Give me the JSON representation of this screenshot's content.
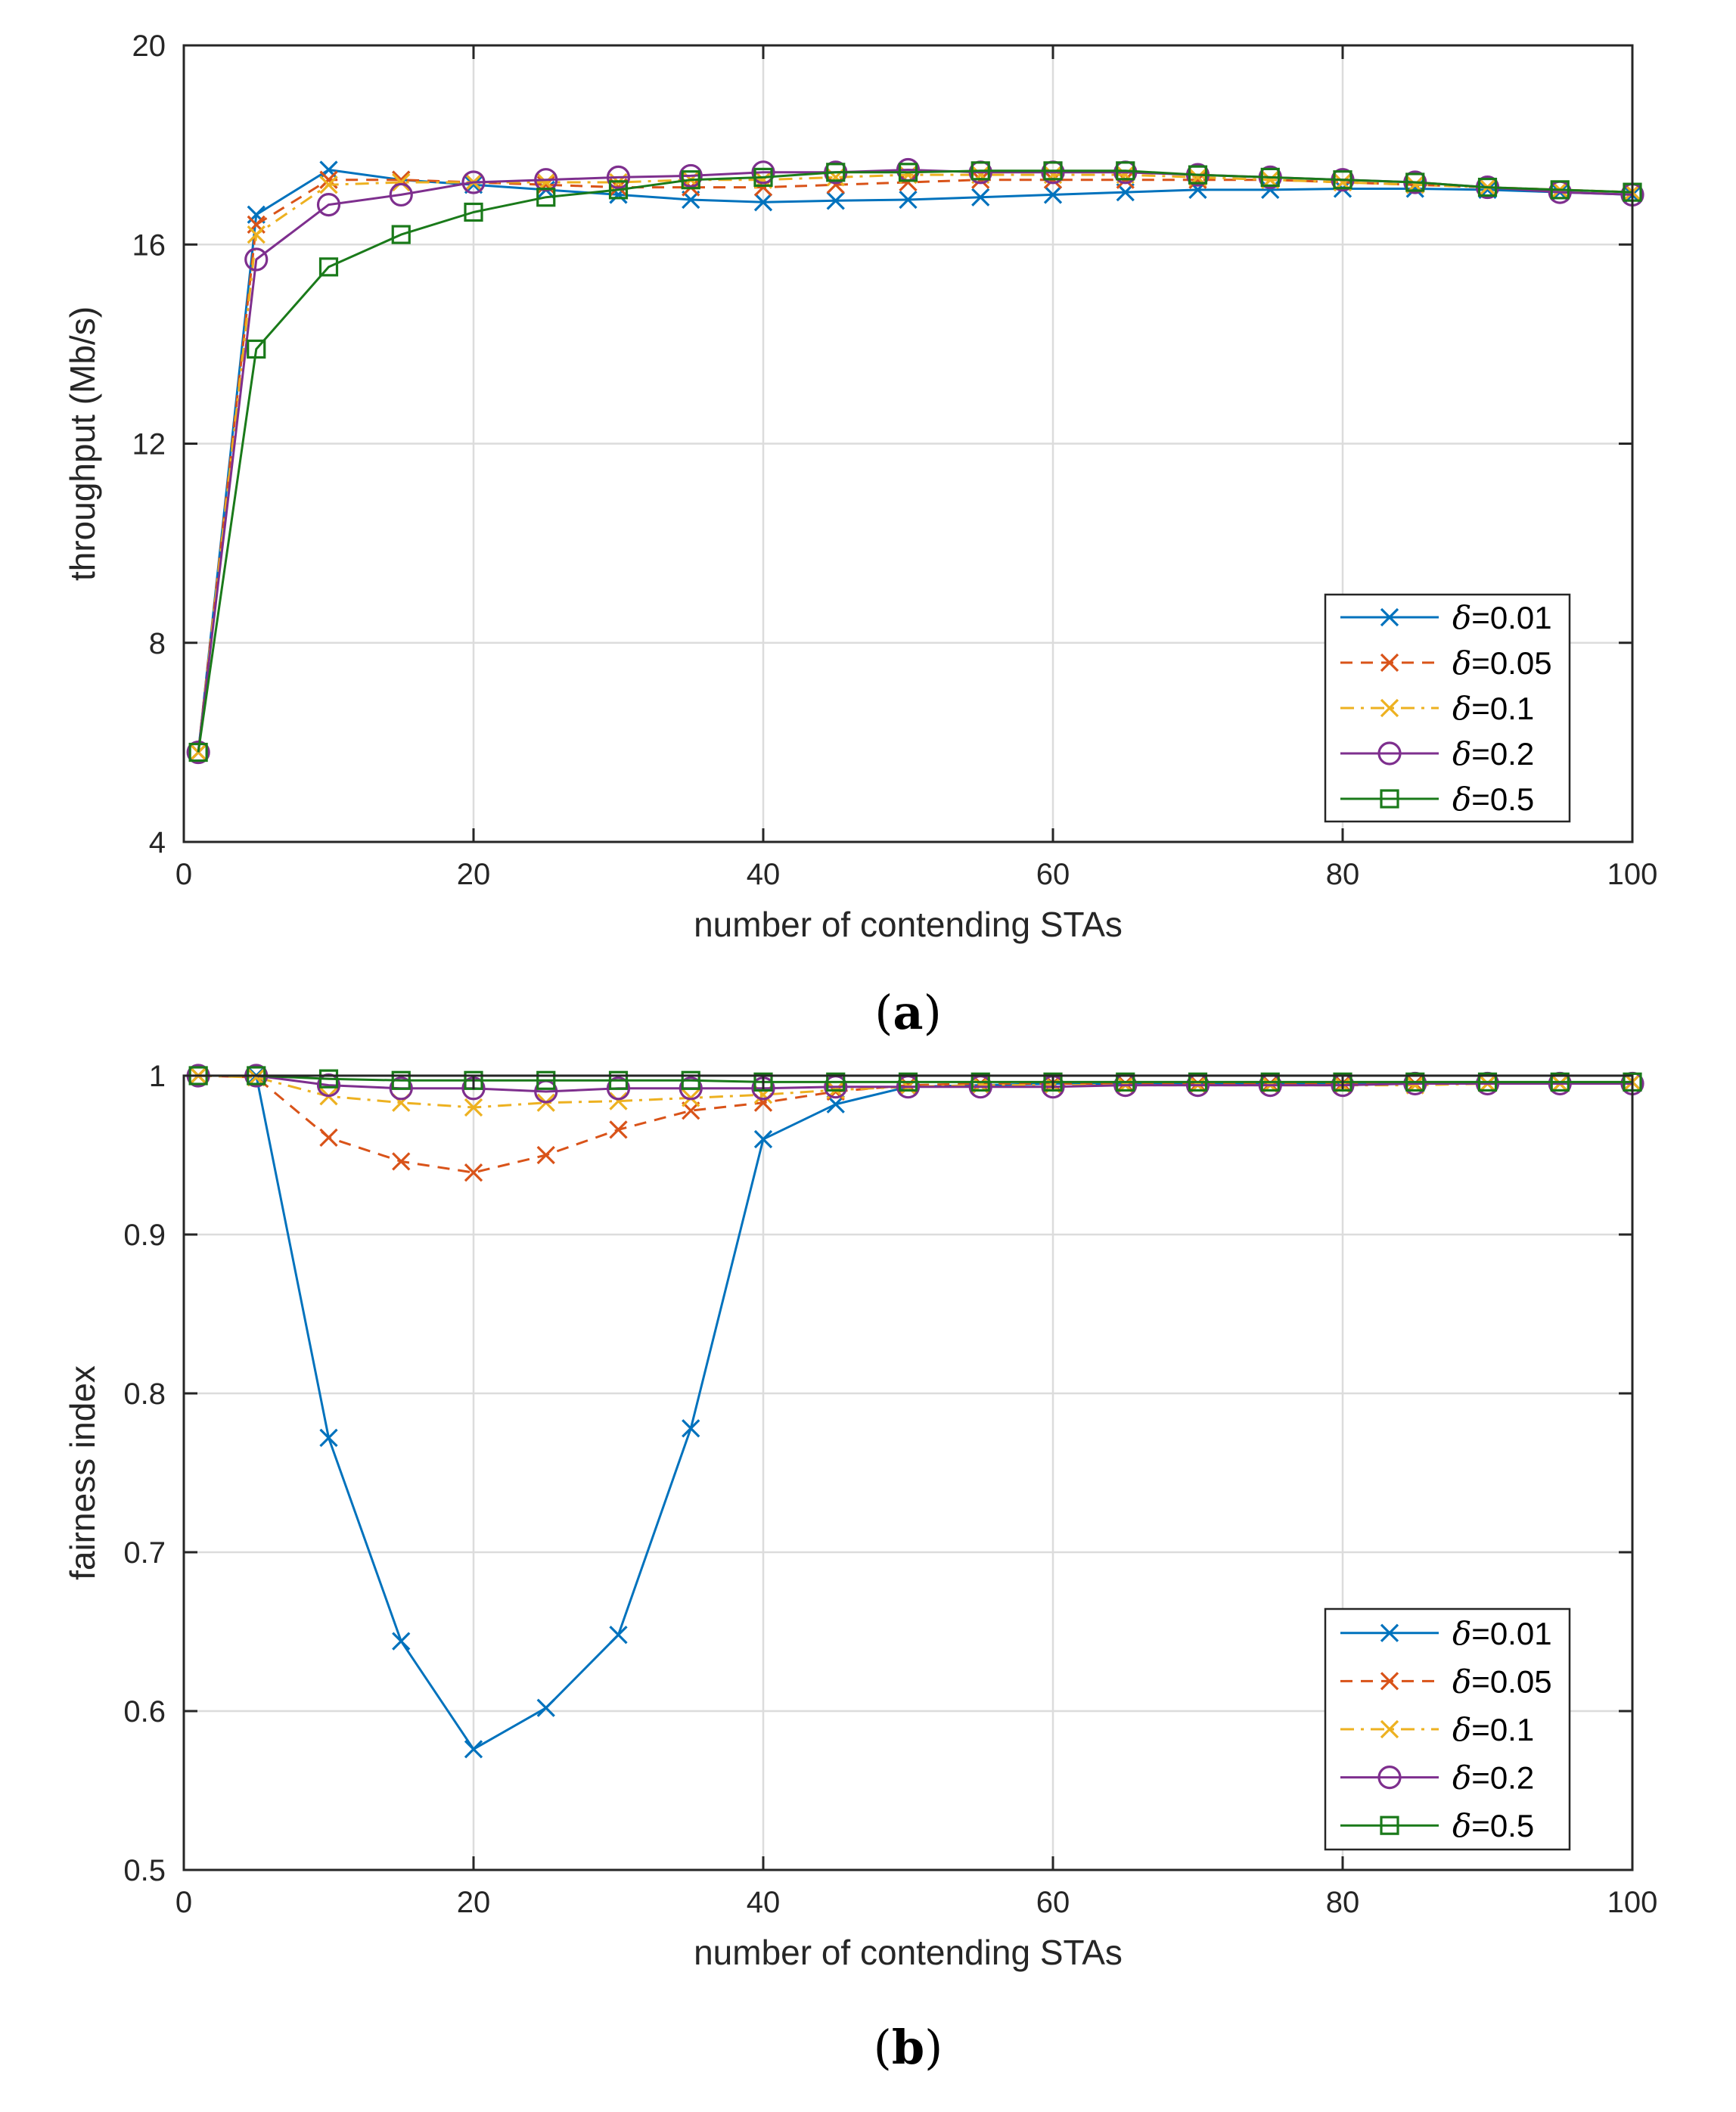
{
  "chart_data": [
    {
      "id": "a",
      "type": "line",
      "caption_letter": "a",
      "xlabel": "number of contending STAs",
      "ylabel": "throughput (Mb/s)",
      "xlim": [
        0,
        100
      ],
      "ylim": [
        4,
        20
      ],
      "xticks": [
        0,
        20,
        40,
        60,
        80,
        100
      ],
      "yticks": [
        4,
        8,
        12,
        16,
        20
      ],
      "grid": true,
      "legend_position": "bottom-right",
      "x": [
        1,
        5,
        10,
        15,
        20,
        25,
        30,
        35,
        40,
        45,
        50,
        55,
        60,
        65,
        70,
        75,
        80,
        85,
        90,
        95,
        100
      ],
      "series": [
        {
          "name": "δ=0.01",
          "delta": "0.01",
          "color": "#0072BD",
          "marker": "x",
          "dash": "solid",
          "values": [
            5.8,
            16.6,
            17.5,
            17.3,
            17.2,
            17.1,
            17.0,
            16.9,
            16.85,
            16.88,
            16.9,
            16.95,
            17.0,
            17.05,
            17.1,
            17.1,
            17.12,
            17.12,
            17.1,
            17.05,
            17.0
          ]
        },
        {
          "name": "δ=0.05",
          "delta": "0.05",
          "color": "#D95319",
          "marker": "x",
          "dash": "dashed",
          "values": [
            5.8,
            16.4,
            17.3,
            17.3,
            17.25,
            17.2,
            17.15,
            17.15,
            17.15,
            17.2,
            17.25,
            17.3,
            17.3,
            17.3,
            17.3,
            17.3,
            17.25,
            17.2,
            17.15,
            17.1,
            17.05
          ]
        },
        {
          "name": "δ=0.1",
          "delta": "0.1",
          "color": "#EDB120",
          "marker": "x",
          "dash": "dashdot",
          "values": [
            5.8,
            16.2,
            17.2,
            17.25,
            17.25,
            17.25,
            17.25,
            17.3,
            17.3,
            17.35,
            17.4,
            17.4,
            17.4,
            17.4,
            17.35,
            17.3,
            17.25,
            17.2,
            17.15,
            17.1,
            17.05
          ]
        },
        {
          "name": "δ=0.2",
          "delta": "0.2",
          "color": "#7E2F8E",
          "marker": "o",
          "dash": "solid",
          "values": [
            5.8,
            15.7,
            16.8,
            17.0,
            17.25,
            17.3,
            17.35,
            17.38,
            17.45,
            17.45,
            17.5,
            17.45,
            17.45,
            17.45,
            17.4,
            17.35,
            17.3,
            17.25,
            17.15,
            17.05,
            17.0
          ]
        },
        {
          "name": "δ=0.5",
          "delta": "0.5",
          "color": "#1A7A1A",
          "marker": "s",
          "dash": "solid",
          "values": [
            5.8,
            13.9,
            15.55,
            16.2,
            16.65,
            16.95,
            17.1,
            17.3,
            17.35,
            17.45,
            17.45,
            17.48,
            17.48,
            17.48,
            17.4,
            17.35,
            17.3,
            17.25,
            17.15,
            17.1,
            17.05
          ]
        }
      ]
    },
    {
      "id": "b",
      "type": "line",
      "caption_letter": "b",
      "xlabel": "number of contending STAs",
      "ylabel": "fairness index",
      "xlim": [
        0,
        100
      ],
      "ylim": [
        0.5,
        1
      ],
      "xticks": [
        0,
        20,
        40,
        60,
        80,
        100
      ],
      "yticks": [
        0.5,
        0.6,
        0.7,
        0.8,
        0.9,
        1
      ],
      "grid": true,
      "legend_position": "bottom-right",
      "x": [
        1,
        5,
        10,
        15,
        20,
        25,
        30,
        35,
        40,
        45,
        50,
        55,
        60,
        65,
        70,
        75,
        80,
        85,
        90,
        95,
        100
      ],
      "series": [
        {
          "name": "δ=0.01",
          "delta": "0.01",
          "color": "#0072BD",
          "marker": "x",
          "dash": "solid",
          "values": [
            1.0,
            1.0,
            0.772,
            0.644,
            0.576,
            0.602,
            0.648,
            0.778,
            0.96,
            0.982,
            0.993,
            0.994,
            0.995,
            0.995,
            0.995,
            0.995,
            0.995,
            0.995,
            0.995,
            0.995,
            0.996
          ]
        },
        {
          "name": "δ=0.05",
          "delta": "0.05",
          "color": "#D95319",
          "marker": "x",
          "dash": "dashed",
          "values": [
            1.0,
            0.999,
            0.961,
            0.946,
            0.939,
            0.95,
            0.966,
            0.978,
            0.983,
            0.99,
            0.994,
            0.995,
            0.995,
            0.995,
            0.995,
            0.995,
            0.995,
            0.995,
            0.995,
            0.995,
            0.996
          ]
        },
        {
          "name": "δ=0.1",
          "delta": "0.1",
          "color": "#EDB120",
          "marker": "x",
          "dash": "dashdot",
          "values": [
            1.0,
            0.999,
            0.987,
            0.983,
            0.98,
            0.983,
            0.984,
            0.986,
            0.988,
            0.991,
            0.993,
            0.994,
            0.994,
            0.994,
            0.994,
            0.994,
            0.994,
            0.994,
            0.995,
            0.995,
            0.996
          ]
        },
        {
          "name": "δ=0.2",
          "delta": "0.2",
          "color": "#7E2F8E",
          "marker": "o",
          "dash": "solid",
          "values": [
            1.0,
            1.0,
            0.994,
            0.992,
            0.992,
            0.99,
            0.992,
            0.992,
            0.992,
            0.993,
            0.993,
            0.993,
            0.993,
            0.994,
            0.994,
            0.994,
            0.994,
            0.995,
            0.995,
            0.995,
            0.995
          ]
        },
        {
          "name": "δ=0.5",
          "delta": "0.5",
          "color": "#1A7A1A",
          "marker": "s",
          "dash": "solid",
          "values": [
            1.0,
            1.0,
            0.998,
            0.997,
            0.997,
            0.997,
            0.997,
            0.997,
            0.996,
            0.996,
            0.996,
            0.996,
            0.996,
            0.996,
            0.996,
            0.996,
            0.996,
            0.996,
            0.996,
            0.996,
            0.996
          ]
        }
      ]
    }
  ]
}
